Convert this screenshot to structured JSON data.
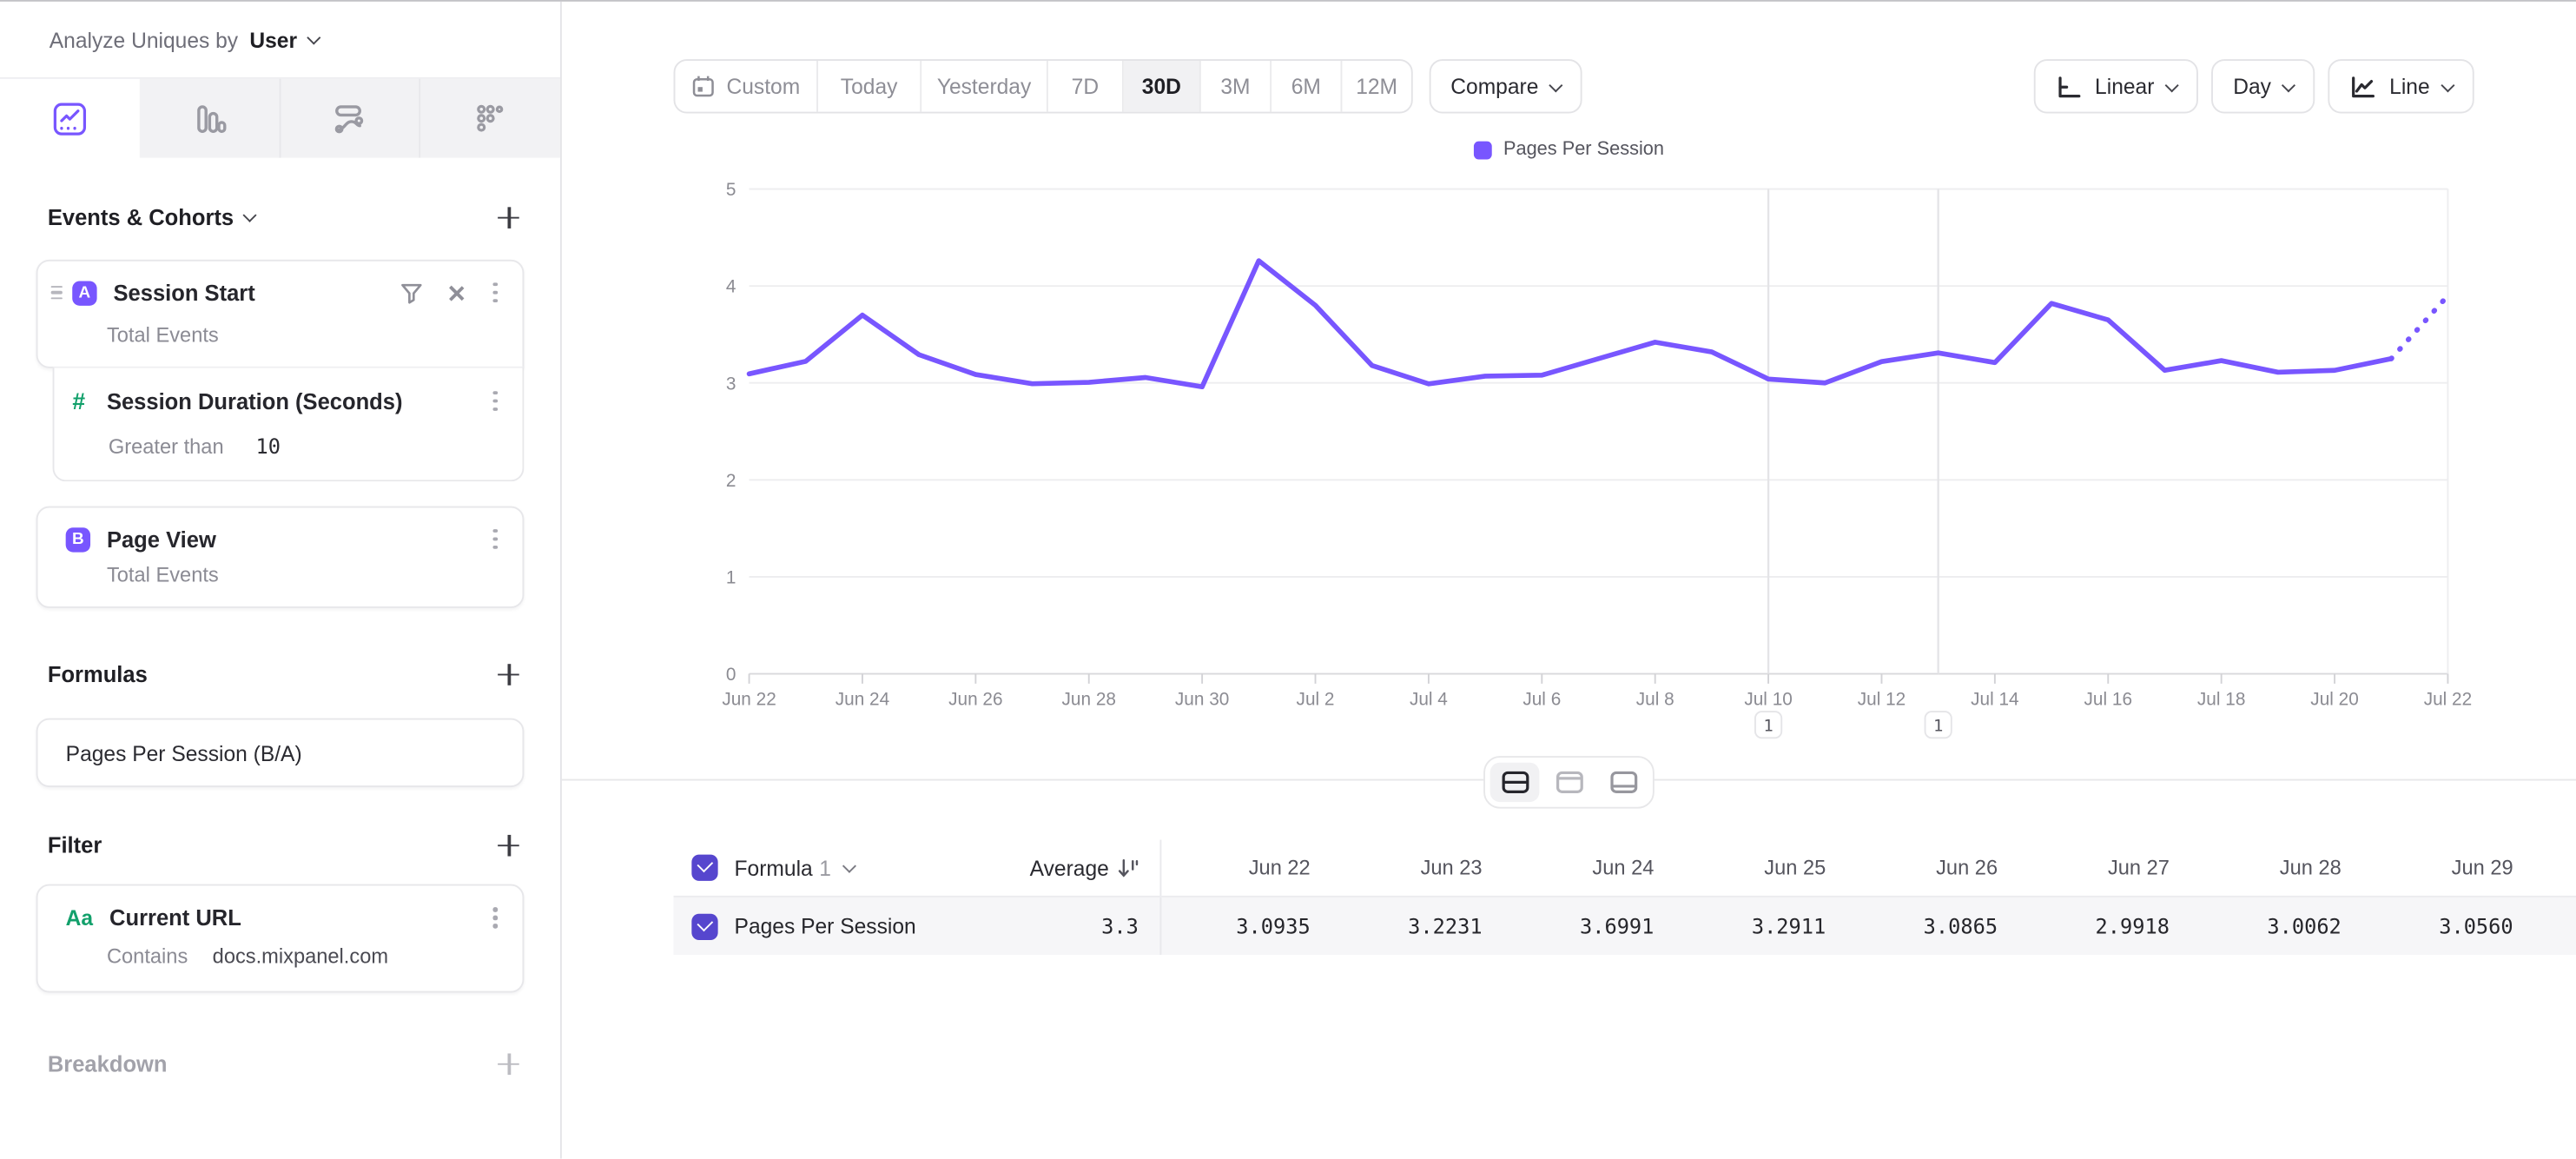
{
  "header": {
    "analyze_label": "Analyze Uniques by",
    "analyze_value": "User"
  },
  "sidebar": {
    "tabs": [
      {
        "name": "insights",
        "active": true
      },
      {
        "name": "funnels",
        "active": false
      },
      {
        "name": "flows",
        "active": false
      },
      {
        "name": "retention",
        "active": false
      }
    ],
    "events_section": {
      "title": "Events & Cohorts"
    },
    "events": [
      {
        "badge": "A",
        "title": "Session Start",
        "subtitle": "Total Events",
        "property": {
          "icon": "#",
          "title": "Session Duration (Seconds)",
          "operator": "Greater than",
          "value": "10"
        }
      },
      {
        "badge": "B",
        "title": "Page View",
        "subtitle": "Total Events"
      }
    ],
    "formulas_section": {
      "title": "Formulas"
    },
    "formula": {
      "label": "Pages Per Session (B/A)"
    },
    "filter_section": {
      "title": "Filter"
    },
    "filter": {
      "icon": "Aa",
      "title": "Current URL",
      "operator": "Contains",
      "value": "docs.mixpanel.com"
    },
    "breakdown_section": {
      "title": "Breakdown"
    }
  },
  "toolbar": {
    "ranges": [
      "Custom",
      "Today",
      "Yesterday",
      "7D",
      "30D",
      "3M",
      "6M",
      "12M"
    ],
    "active_range": "30D",
    "compare": "Compare",
    "scale": "Linear",
    "interval": "Day",
    "chart_type": "Line"
  },
  "chart_data": {
    "type": "line",
    "title": "",
    "x": [
      "Jun 22",
      "Jun 23",
      "Jun 24",
      "Jun 25",
      "Jun 26",
      "Jun 27",
      "Jun 28",
      "Jun 29",
      "Jun 30",
      "Jul 1",
      "Jul 2",
      "Jul 3",
      "Jul 4",
      "Jul 5",
      "Jul 6",
      "Jul 7",
      "Jul 8",
      "Jul 9",
      "Jul 10",
      "Jul 11",
      "Jul 12",
      "Jul 13",
      "Jul 14",
      "Jul 15",
      "Jul 16",
      "Jul 17",
      "Jul 18",
      "Jul 19",
      "Jul 20",
      "Jul 21",
      "Jul 22"
    ],
    "series": [
      {
        "name": "Pages Per Session",
        "color": "#7856FF",
        "values": [
          3.0935,
          3.2231,
          3.6991,
          3.2911,
          3.0865,
          2.9918,
          3.0062,
          3.056,
          2.96,
          4.26,
          3.8,
          3.18,
          2.99,
          3.07,
          3.08,
          3.25,
          3.42,
          3.32,
          3.04,
          3.0,
          3.22,
          3.31,
          3.21,
          3.82,
          3.65,
          3.13,
          3.23,
          3.11,
          3.13,
          3.25,
          3.9
        ]
      }
    ],
    "dotted_tail_segments": 1,
    "ylim": [
      0,
      5
    ],
    "yticks": [
      0,
      1,
      2,
      3,
      4,
      5
    ],
    "x_tick_every": 2,
    "grid": "horizontal",
    "legend_position": "top-center",
    "annotations": [
      {
        "x": "Jul 10",
        "label": "1"
      },
      {
        "x": "Jul 13",
        "label": "1"
      }
    ]
  },
  "table": {
    "name_header": "Formula",
    "name_header_index": "1",
    "average_header": "Average",
    "columns": [
      "Jun 22",
      "Jun 23",
      "Jun 24",
      "Jun 25",
      "Jun 26",
      "Jun 27",
      "Jun 28",
      "Jun 29"
    ],
    "rows": [
      {
        "name": "Pages Per Session",
        "average": "3.3",
        "values": [
          "3.0935",
          "3.2231",
          "3.6991",
          "3.2911",
          "3.0865",
          "2.9918",
          "3.0062",
          "3.0560"
        ]
      }
    ]
  },
  "colors": {
    "accent": "#7856FF",
    "checkbox": "#5646CE",
    "green": "#12A06B"
  }
}
